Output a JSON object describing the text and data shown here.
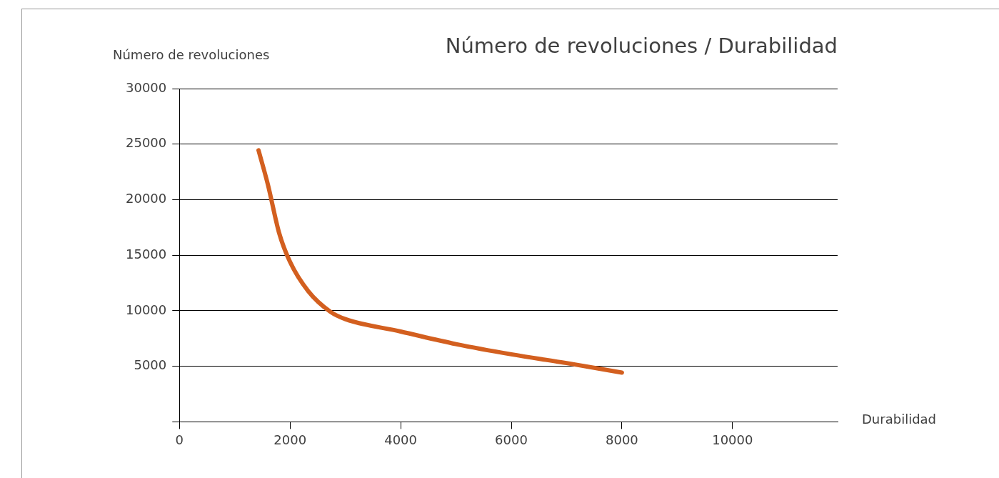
{
  "chart_data": {
    "type": "line",
    "title": "Número de revoluciones / Durabilidad",
    "xlabel": "Durabilidad",
    "ylabel": "Número de revoluciones",
    "x": [
      1430,
      1600,
      1800,
      2000,
      2330,
      2730,
      3000,
      4000,
      5000,
      6000,
      7000,
      8000
    ],
    "series": [
      {
        "color": "#d35f1f",
        "values": [
          24450,
          21350,
          17050,
          14400,
          11760,
          9910,
          9250,
          8130,
          7000,
          6080,
          5290,
          4430
        ]
      }
    ],
    "xlim": [
      0,
      11900
    ],
    "xticks": [
      0,
      2000,
      4000,
      6000,
      8000,
      10000
    ],
    "ylim": [
      0,
      30000
    ],
    "yticks": [
      {
        "value": 0,
        "label": null
      },
      5000,
      10000,
      15000,
      20000,
      25000,
      30000
    ],
    "grid": "y",
    "legend": false,
    "marker": "none",
    "line_style": "solid"
  }
}
